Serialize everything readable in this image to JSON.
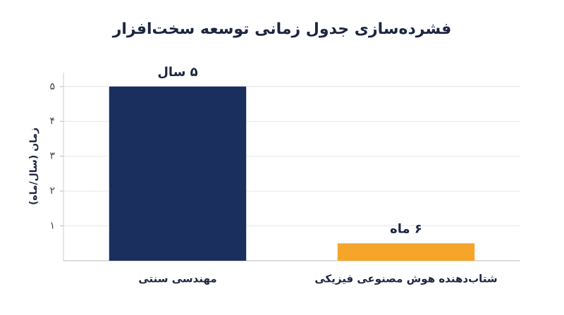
{
  "chart_data": {
    "type": "bar",
    "title": "فشرده‌سازی جدول زمانی توسعه سخت‌افزار",
    "y_label": "زمان (سال/ماه)",
    "categories": [
      "مهندسی سنتی",
      "شتاب‌دهنده هوش مصنوعی فیزیکی"
    ],
    "values": [
      5,
      0.5
    ],
    "value_labels": [
      "۵ سال",
      "۶ ماه"
    ],
    "colors": [
      "#1b2f5e",
      "#f5a52a"
    ],
    "ylim": [
      0,
      5.4
    ],
    "yticks": [
      {
        "value": 1,
        "label": "۱"
      },
      {
        "value": 2,
        "label": "۲"
      },
      {
        "value": 3,
        "label": "۳"
      },
      {
        "value": 4,
        "label": "۴"
      },
      {
        "value": 5,
        "label": "۵"
      }
    ],
    "grid": true
  }
}
